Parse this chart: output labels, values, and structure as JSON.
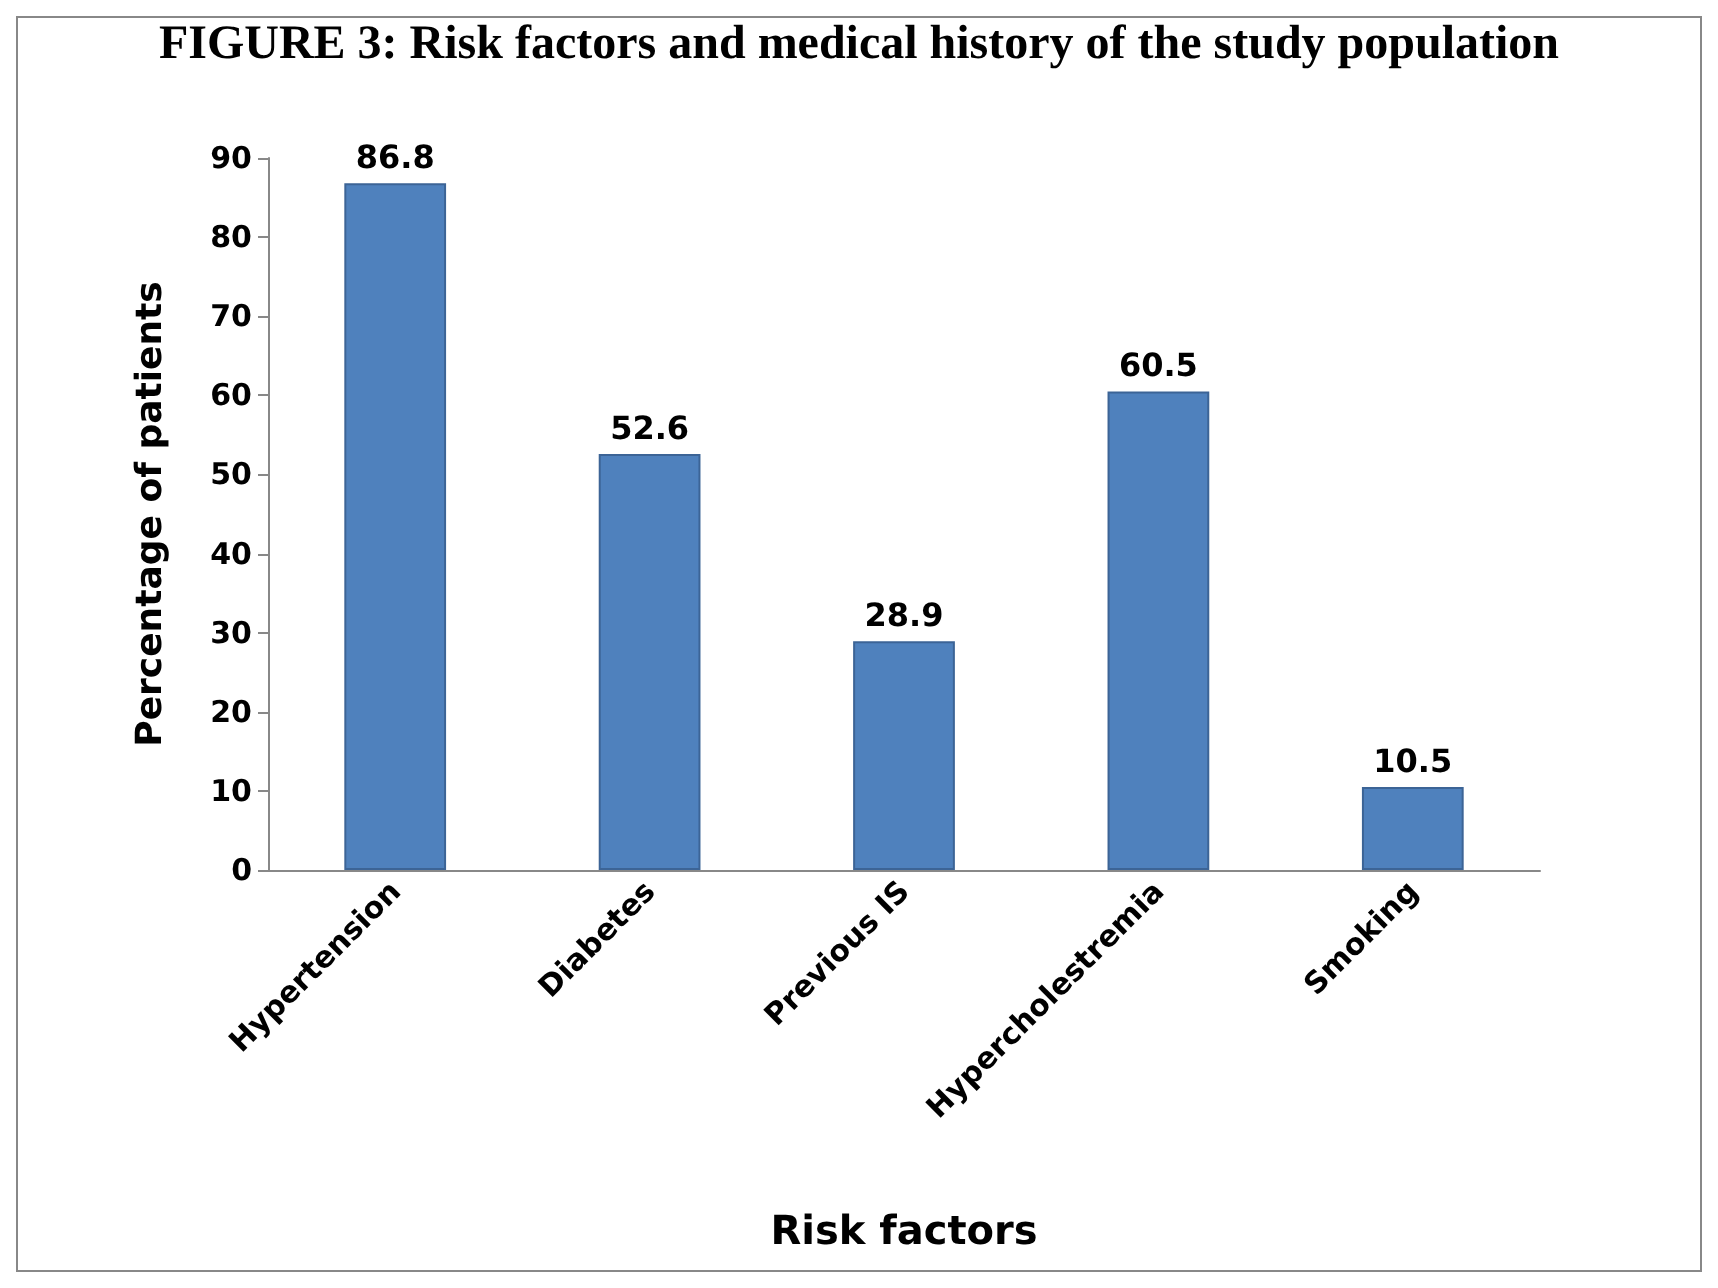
{
  "chart_data": {
    "type": "bar",
    "title": "FIGURE 3: Risk factors and medical history of the study population",
    "xlabel": "Risk factors",
    "ylabel": "Percentage of patients",
    "categories": [
      "Hypertension",
      "Diabetes",
      "Previous IS",
      "Hypercholestremia",
      "Smoking"
    ],
    "values": [
      86.8,
      52.6,
      28.9,
      60.5,
      10.5
    ],
    "color": "#4f81bd",
    "ylim": [
      0,
      90
    ],
    "yticks": [
      0,
      10,
      20,
      30,
      40,
      50,
      60,
      70,
      80,
      90
    ],
    "grid": false,
    "data_labels": true
  }
}
